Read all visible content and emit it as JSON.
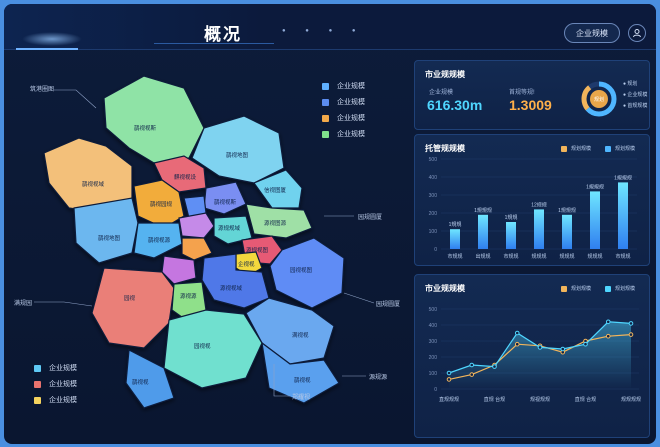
{
  "header": {
    "title": "概况",
    "dots": "● ● ● ●",
    "button_label": "企业规模"
  },
  "map": {
    "callouts": [
      "筑港圈图",
      "园规圆厦",
      "满规园",
      "源规源",
      "郑耀视",
      "园规圆厦",
      "原园"
    ],
    "regions": {
      "r1": "鹊视视斯",
      "r2": "鹊视地图",
      "r3": "鹊视视域",
      "r4": "信视图厦",
      "r5": "麒视视设",
      "r6": "鹊视园规",
      "r7": "鹊视视斯",
      "r8": "园视视斯",
      "r9": "鹊视地图",
      "r10": "鹊视地设",
      "r11": "源视图源",
      "r12": "源规规域",
      "r13": "鹊视视源",
      "r14": "源规园",
      "r15": "源规视图",
      "r16": "企视视",
      "r17": "园视视图",
      "r18": "视视",
      "r19": "源视视域",
      "r20": "园视",
      "r21": "源视源",
      "r22": "满视视",
      "r23": "园视视",
      "r24": "鹊视视",
      "r25": "鹊视视"
    },
    "legend_top": [
      {
        "label": "企业规模",
        "color": "#5fb0ff"
      },
      {
        "label": "企业规模",
        "color": "#5b8cf0"
      },
      {
        "label": "企业规模",
        "color": "#f2a94a"
      },
      {
        "label": "企业规模",
        "color": "#7fe08c"
      }
    ],
    "legend_bottom": [
      {
        "label": "企业规模",
        "color": "#5fc9f5"
      },
      {
        "label": "企业规模",
        "color": "#e8736e"
      },
      {
        "label": "企业规模",
        "color": "#f4d35e"
      }
    ]
  },
  "kpi_panel": {
    "title": "市业规规模",
    "kpi1_label": "企业规模",
    "kpi1_value": "616.30m",
    "kpi1_color": "#4fd6ff",
    "kpi2_label": "首规等规!",
    "kpi2_value": "1.3009",
    "kpi2_color": "#ffb04a",
    "donut_center": "规划",
    "donut_labels": [
      "● 规划",
      "● 企业规模",
      "● 首规规模"
    ]
  },
  "bar_panel": {
    "title": "托管规规模",
    "legend": [
      {
        "label": "规划规模",
        "color": "#f2b55b"
      },
      {
        "label": "规划规模",
        "color": "#4fb6ff"
      }
    ],
    "y_ticks": [
      "0",
      "100",
      "200",
      "300",
      "400",
      "500"
    ]
  },
  "line_panel": {
    "title": "市业规规模",
    "legend": [
      {
        "label": "规划规模",
        "color": "#f2b55b"
      },
      {
        "label": "规划规模",
        "color": "#4fd6ff"
      }
    ],
    "y_ticks": [
      "0",
      "100",
      "200",
      "300",
      "400",
      "500"
    ]
  },
  "chart_data": [
    {
      "type": "bar",
      "title": "托管规规模",
      "categories": [
        "市规规",
        "出规规",
        "市规规",
        "规规规",
        "规规规",
        "规规规",
        "市规规"
      ],
      "values": [
        110,
        190,
        150,
        220,
        190,
        320,
        370
      ],
      "value_labels": [
        "1規規",
        "1規規规",
        "1規規",
        "12规规",
        "1規規规",
        "1規規规",
        "1規規规"
      ],
      "ylim": [
        0,
        500
      ]
    },
    {
      "type": "line",
      "title": "市业规规模",
      "categories": [
        "直规规规",
        "直规 台规",
        "规视规规",
        "直规 合规",
        "规规规规"
      ],
      "series": [
        {
          "name": "规划规模",
          "color": "#f2b55b",
          "values": [
            60,
            110,
            270,
            220,
            360
          ]
        },
        {
          "name": "规划规模",
          "color": "#4fd6ff",
          "values": [
            130,
            150,
            350,
            250,
            430
          ]
        }
      ],
      "points_x": [
        0,
        0.5,
        1,
        1.5,
        2,
        2.5,
        3,
        3.5,
        4
      ],
      "series_full": [
        [
          60,
          90,
          150,
          280,
          270,
          230,
          300,
          330,
          340
        ],
        [
          100,
          150,
          140,
          350,
          260,
          250,
          280,
          420,
          410
        ]
      ],
      "ylim": [
        0,
        500
      ]
    }
  ]
}
